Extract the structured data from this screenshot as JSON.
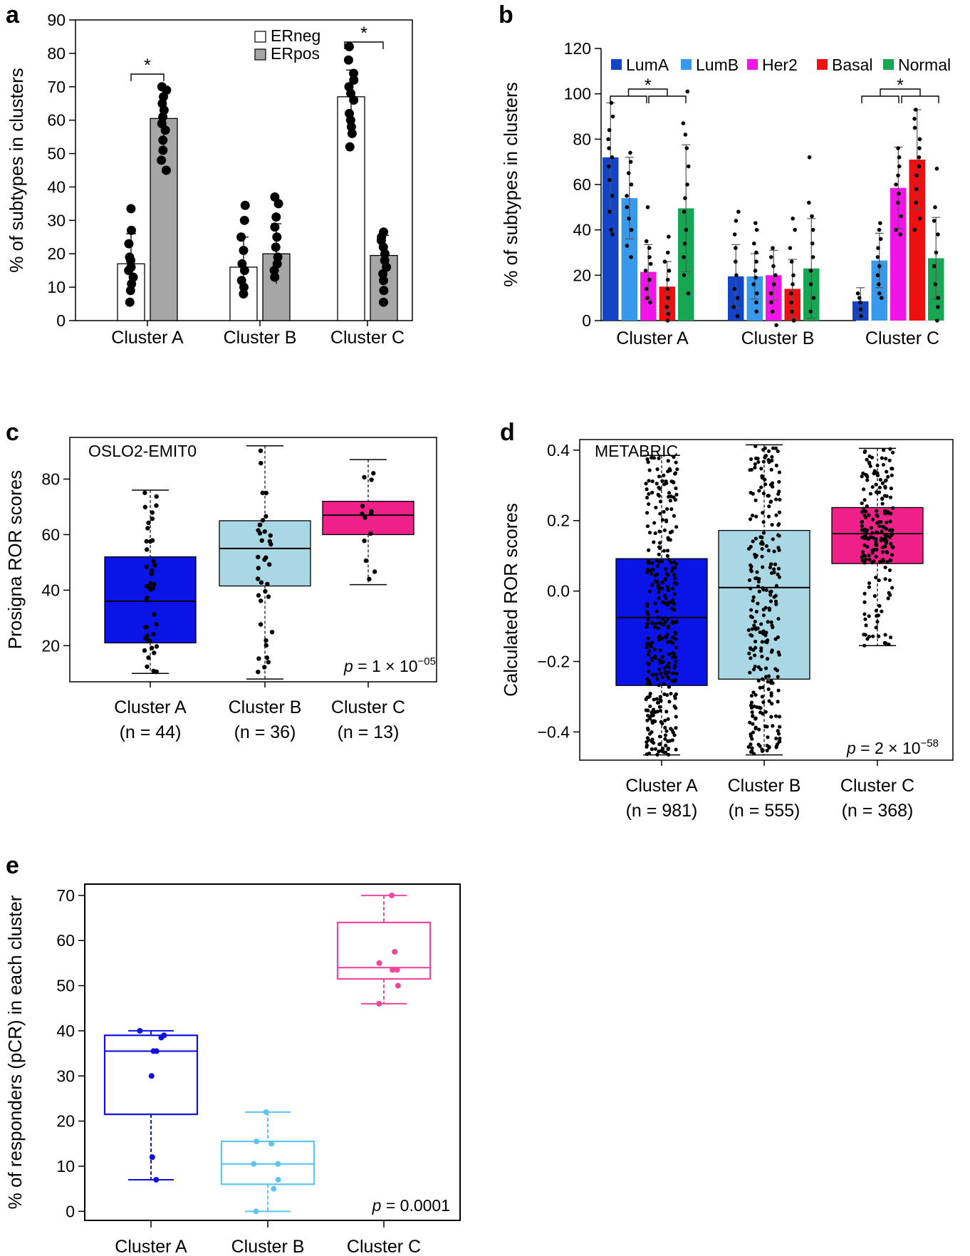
{
  "chart_data": [
    {
      "panel": "a",
      "type": "bar",
      "categories": [
        "Cluster A",
        "Cluster B",
        "Cluster C"
      ],
      "series": [
        {
          "name": "ERneg",
          "color": "#ffffff",
          "values": [
            17,
            16,
            67
          ],
          "err": [
            9,
            9,
            8
          ],
          "points": [
            [
              33.5,
              27,
              23,
              19,
              18,
              16,
              15,
              13,
              11,
              9,
              5.5
            ],
            [
              34.5,
              30,
              25,
              21,
              17,
              15,
              12,
              10,
              8
            ],
            [
              82,
              78,
              74,
              72,
              70,
              68,
              66,
              62,
              60,
              58,
              56,
              52
            ]
          ]
        },
        {
          "name": "ERpos",
          "color": "#a6a6a6",
          "values": [
            60.5,
            20,
            19.5
          ],
          "err": [
            9,
            9,
            6
          ],
          "points": [
            [
              70,
              69,
              67,
              65,
              63,
              61,
              59,
              57,
              54,
              51,
              48,
              45
            ],
            [
              37,
              35,
              31,
              28,
              25,
              22,
              19,
              17,
              15,
              13
            ],
            [
              26.5,
              25,
              24,
              22,
              20,
              18,
              16,
              14,
              12,
              9,
              5.5
            ]
          ]
        }
      ],
      "ylabel": "% of subtypes in clusters",
      "ylim": [
        0,
        90
      ],
      "yticks": [
        0,
        10,
        20,
        30,
        40,
        50,
        60,
        70,
        80,
        90
      ],
      "annotations": [
        "*",
        "*"
      ],
      "legend": "top-center"
    },
    {
      "panel": "b",
      "type": "bar",
      "categories": [
        "Cluster A",
        "Cluster B",
        "Cluster C"
      ],
      "series": [
        {
          "name": "LumA",
          "color": "#1444c4",
          "values": [
            72,
            19.5,
            8.5
          ],
          "err": [
            24,
            14,
            6
          ],
          "points": [
            [
              96,
              90,
              84,
              80,
              76,
              72,
              68,
              62,
              55,
              48,
              40,
              38
            ],
            [
              48,
              44,
              38,
              32,
              26,
              20,
              14,
              10,
              6,
              2
            ],
            [
              12,
              10,
              8,
              5,
              2
            ]
          ]
        },
        {
          "name": "LumB",
          "color": "#3898ea",
          "values": [
            54,
            19.5,
            26.5
          ],
          "err": [
            18,
            10,
            12
          ],
          "points": [
            [
              74,
              70,
              65,
              60,
              55,
              50,
              45,
              40,
              33,
              28
            ],
            [
              43,
              40,
              34,
              30,
              26,
              22,
              19,
              16,
              12,
              8,
              4
            ],
            [
              43,
              40,
              36,
              32,
              28,
              24,
              20,
              16,
              12,
              10
            ]
          ]
        },
        {
          "name": "Her2",
          "color": "#f014e8",
          "values": [
            21.5,
            20,
            58.5
          ],
          "err": [
            12,
            11,
            18
          ],
          "points": [
            [
              50,
              35,
              32,
              28,
              25,
              22,
              18,
              14,
              10,
              8
            ],
            [
              32,
              28,
              24,
              20,
              16,
              12,
              8,
              4,
              -2
            ],
            [
              76,
              72,
              68,
              64,
              60,
              56,
              52,
              46,
              40,
              38
            ]
          ]
        },
        {
          "name": "Basal",
          "color": "#ee1010",
          "values": [
            15,
            14,
            71
          ],
          "err": [
            11,
            13,
            22
          ],
          "points": [
            [
              37,
              30,
              26,
              22,
              18,
              14,
              10,
              6,
              3,
              0
            ],
            [
              45,
              40,
              32,
              26,
              20,
              16,
              12,
              8,
              4,
              0
            ],
            [
              93,
              89,
              85,
              80,
              76,
              72,
              68,
              64,
              58,
              52,
              45,
              40
            ]
          ]
        },
        {
          "name": "Normal",
          "color": "#17a652",
          "values": [
            49.5,
            23,
            27.5
          ],
          "err": [
            28,
            22,
            18
          ],
          "points": [
            [
              101,
              87,
              82,
              76,
              68,
              60,
              54,
              48,
              40,
              34,
              28,
              20,
              12
            ],
            [
              72,
              52,
              46,
              40,
              34,
              28,
              22,
              16,
              10,
              4
            ],
            [
              67,
              50,
              44,
              38,
              30,
              24,
              16,
              10,
              6,
              0
            ]
          ]
        }
      ],
      "ylabel": "% of subtypes in clusters",
      "ylim": [
        0,
        120
      ],
      "yticks": [
        0,
        20,
        40,
        60,
        80,
        100,
        120
      ],
      "annotations": [
        "*",
        "*"
      ],
      "legend": "top"
    },
    {
      "panel": "c",
      "type": "box",
      "tag": "OSLO2-EMIT0",
      "categories": [
        "Cluster A",
        "Cluster B",
        "Cluster C"
      ],
      "ns": [
        "(n = 44)",
        "(n = 36)",
        "(n = 13)"
      ],
      "n_values": [
        44,
        36,
        13
      ],
      "boxes": [
        {
          "min": 10,
          "q1": 21,
          "median": 36,
          "q3": 52,
          "max": 76,
          "color": "#0a14e6"
        },
        {
          "min": 8,
          "q1": 41.5,
          "median": 55,
          "q3": 65,
          "max": 92,
          "color": "#a9d7e4"
        },
        {
          "min": 42,
          "q1": 60,
          "median": 67,
          "q3": 72,
          "max": 87,
          "color": "#f0208a"
        }
      ],
      "ylabel": "Prosigna ROR scores",
      "ylim": [
        7,
        95
      ],
      "yticks": [
        20,
        40,
        60,
        80
      ],
      "pvalue": {
        "prefix": "p",
        "text": " = 1 × 10",
        "exp": "−05"
      }
    },
    {
      "panel": "d",
      "type": "box",
      "tag": "METABRIC",
      "categories": [
        "Cluster A",
        "Cluster B",
        "Cluster C"
      ],
      "ns": [
        "(n = 981)",
        "(n = 555)",
        "(n = 368)"
      ],
      "n_values": [
        981,
        555,
        368
      ],
      "boxes": [
        {
          "min": -0.465,
          "q1": -0.268,
          "median": -0.075,
          "q3": 0.092,
          "max": 0.385,
          "color": "#0a14e6"
        },
        {
          "min": -0.465,
          "q1": -0.25,
          "median": 0.01,
          "q3": 0.172,
          "max": 0.415,
          "color": "#a9d7e4"
        },
        {
          "min": -0.155,
          "q1": 0.078,
          "median": 0.163,
          "q3": 0.237,
          "max": 0.405,
          "color": "#f0208a"
        }
      ],
      "ylabel": "Calculated ROR scores",
      "ylim": [
        -0.48,
        0.43
      ],
      "yticks": [
        -0.4,
        -0.2,
        0.0,
        0.2,
        0.4
      ],
      "ytick_labels": [
        "−0.4",
        "−0.2",
        "0.0",
        "0.2",
        "0.4"
      ],
      "pvalue": {
        "prefix": "p",
        "text": " = 2 × 10",
        "exp": "−58"
      }
    },
    {
      "panel": "e",
      "type": "box",
      "categories": [
        "Cluster A",
        "Cluster B",
        "Cluster C"
      ],
      "boxes": [
        {
          "min": 7,
          "q1": 21.5,
          "median": 35.5,
          "q3": 39,
          "max": 40,
          "color": "#1010e0",
          "points": [
            40,
            39,
            38.5,
            35.5,
            35.5,
            30,
            12,
            7
          ]
        },
        {
          "min": 0,
          "q1": 6,
          "median": 10.5,
          "q3": 15.5,
          "max": 22,
          "color": "#5ec4f2",
          "points": [
            22,
            15.5,
            15,
            10.5,
            10.5,
            7,
            5,
            0
          ]
        },
        {
          "min": 46,
          "q1": 51.5,
          "median": 54,
          "q3": 64,
          "max": 70,
          "color": "#f0479c",
          "points": [
            70,
            57.5,
            55,
            53.5,
            53.5,
            50,
            46
          ]
        }
      ],
      "ylabel": "% of responders (pCR) in each cluster",
      "ylim": [
        -2,
        72.5
      ],
      "yticks": [
        0,
        10,
        20,
        30,
        40,
        50,
        60,
        70
      ],
      "pvalue": {
        "prefix": "p",
        "text": " = 0.0001"
      }
    }
  ]
}
